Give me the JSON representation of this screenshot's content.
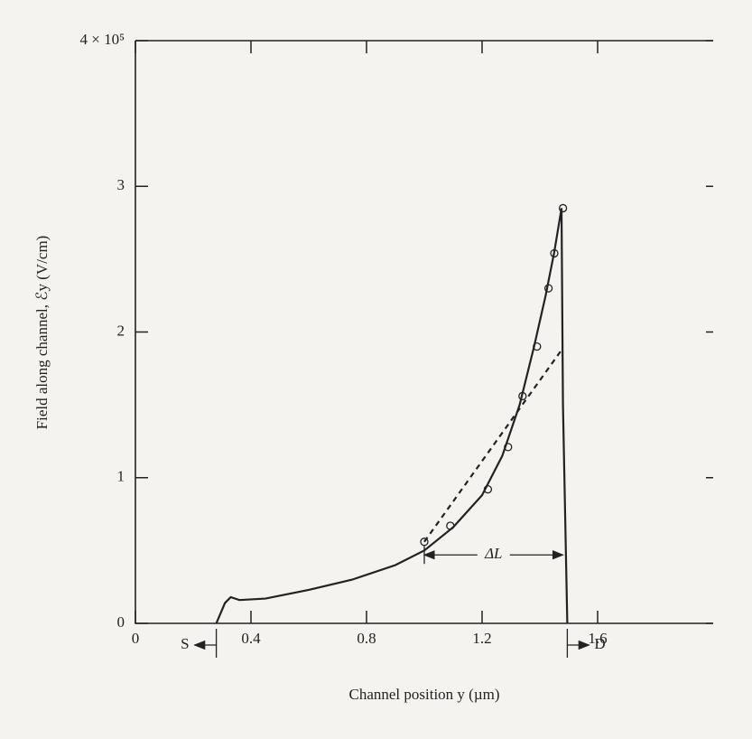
{
  "chart_data": {
    "type": "line",
    "x_label": "Channel position y (µm)",
    "y_label": "Field along channel, ℰy (V/cm)",
    "xlim": [
      0,
      2.0
    ],
    "xticks": [
      0,
      0.4,
      0.8,
      1.2,
      1.6
    ],
    "ylim": [
      0,
      4
    ],
    "yticks": [
      0,
      1,
      2,
      3,
      {
        "value": 4,
        "label": "4 × 10⁵"
      }
    ],
    "series": [
      {
        "style": "solid",
        "color": "#222222",
        "x": [
          0.28,
          0.31,
          0.33,
          0.36,
          0.45,
          0.6,
          0.75,
          0.9,
          1.0,
          1.1,
          1.2,
          1.27,
          1.33,
          1.38,
          1.42,
          1.45,
          1.475,
          1.48,
          1.495
        ],
        "values": [
          0,
          0.14,
          0.18,
          0.16,
          0.17,
          0.23,
          0.3,
          0.4,
          0.5,
          0.66,
          0.88,
          1.15,
          1.5,
          1.9,
          2.25,
          2.55,
          2.85,
          1.5,
          0
        ]
      },
      {
        "style": "dashed",
        "color": "#222222",
        "x": [
          1.0,
          1.48
        ],
        "values": [
          0.56,
          1.89
        ]
      },
      {
        "style": "markers",
        "color": "#222222",
        "x": [
          1.0,
          1.09,
          1.22,
          1.29,
          1.34,
          1.39,
          1.43,
          1.45,
          1.48
        ],
        "values": [
          0.56,
          0.67,
          0.92,
          1.21,
          1.56,
          1.9,
          2.3,
          2.54,
          2.85
        ]
      }
    ],
    "annotations": {
      "delta_l": "ΔL",
      "source": "S",
      "drain": "D"
    }
  }
}
